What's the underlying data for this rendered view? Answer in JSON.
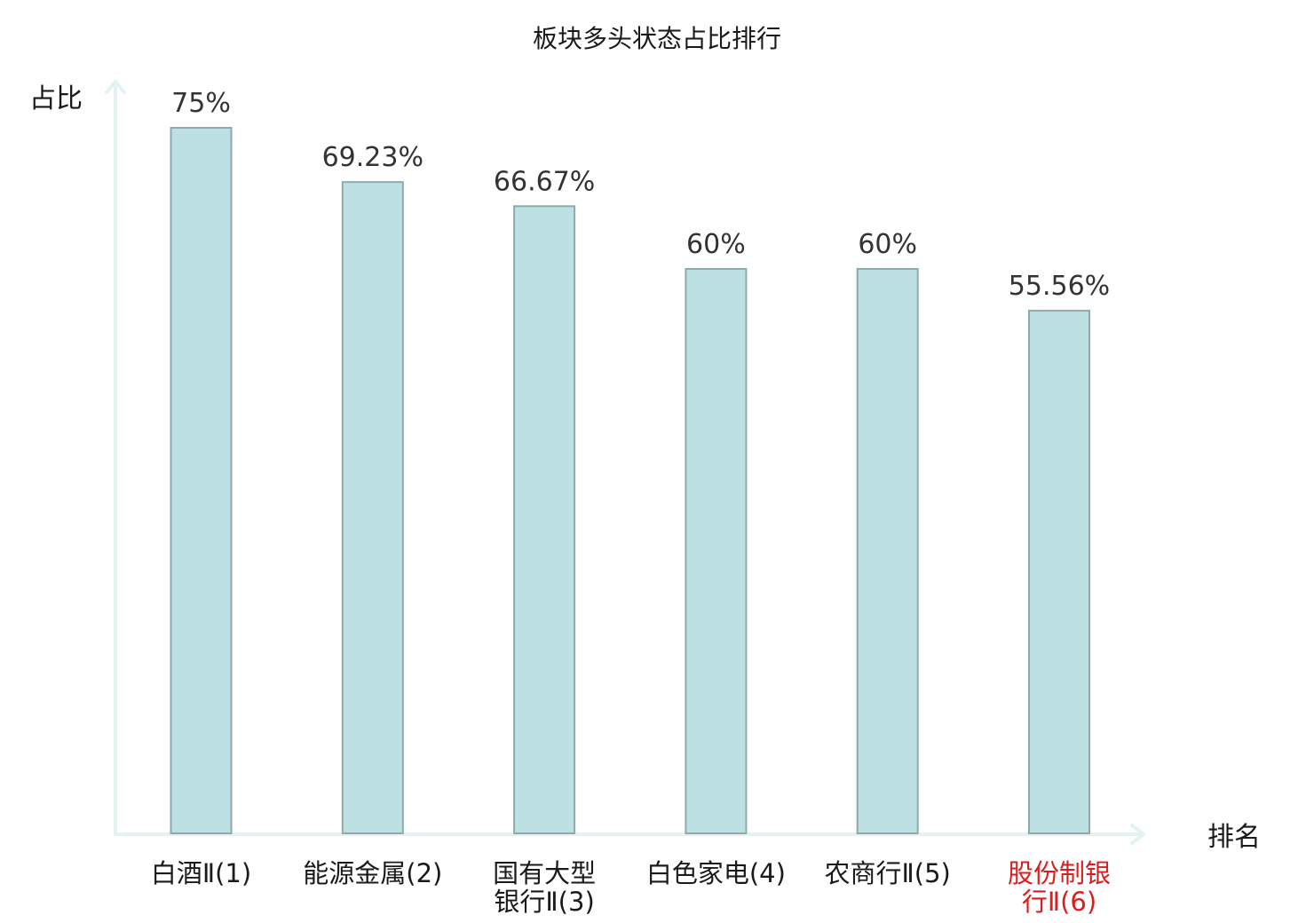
{
  "chart_data": {
    "type": "bar",
    "title": "板块多头状态占比排行",
    "xlabel": "排名",
    "ylabel": "占比",
    "ylim": [
      0,
      100
    ],
    "categories": [
      [
        "白酒Ⅱ(1)"
      ],
      [
        "能源金属(2)"
      ],
      [
        "国有大型",
        "银行Ⅱ(3)"
      ],
      [
        "白色家电(4)"
      ],
      [
        "农商行Ⅱ(5)"
      ],
      [
        "股份制银",
        "行Ⅱ(6)"
      ]
    ],
    "values": [
      75,
      69.23,
      66.67,
      60,
      60,
      55.56
    ],
    "value_labels": [
      "75%",
      "69.23%",
      "66.67%",
      "60%",
      "60%",
      "55.56%"
    ],
    "highlight_index": 5,
    "colors": {
      "bar_fill": "#bde0e3",
      "bar_stroke": "#8faaad",
      "axis": "#e3f3f1",
      "highlight_text": "#d81e1e"
    }
  }
}
